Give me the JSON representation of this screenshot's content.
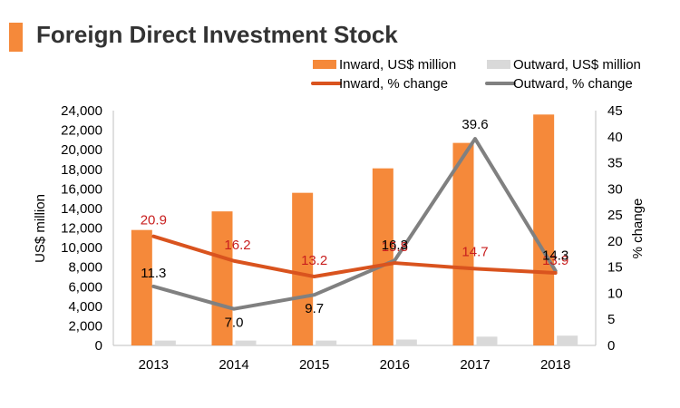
{
  "title": "Foreign Direct Investment Stock",
  "colors": {
    "accent": "#f5893a",
    "inward_bar": "#f5893a",
    "outward_bar": "#d9d9d9",
    "inward_line": "#d9531e",
    "outward_line": "#808080",
    "inward_label": "#c81e1e",
    "outward_label": "#000000"
  },
  "chart_data": {
    "type": "bar",
    "title": "Foreign Direct Investment Stock",
    "categories": [
      "2013",
      "2014",
      "2015",
      "2016",
      "2017",
      "2018"
    ],
    "ylabel": "US$ million",
    "y2label": "% change",
    "ylim": [
      0,
      24000
    ],
    "y_ticks": [
      "0",
      "2,000",
      "4,000",
      "6,000",
      "8,000",
      "10,000",
      "12,000",
      "14,000",
      "16,000",
      "18,000",
      "20,000",
      "22,000",
      "24,000"
    ],
    "y2lim": [
      0,
      45
    ],
    "y2_ticks": [
      "0",
      "5",
      "10",
      "15",
      "20",
      "25",
      "30",
      "35",
      "40",
      "45"
    ],
    "grid": false,
    "legend_position": "top-right",
    "series": [
      {
        "name": "Inward, US$ million",
        "type": "bar",
        "axis": "left",
        "values": [
          11800,
          13700,
          15600,
          18100,
          20700,
          23600
        ]
      },
      {
        "name": "Outward, US$ million",
        "type": "bar",
        "axis": "left",
        "values": [
          500,
          500,
          500,
          600,
          900,
          1000
        ]
      },
      {
        "name": "Inward, % change",
        "type": "line",
        "axis": "right",
        "values": [
          20.9,
          16.2,
          13.2,
          15.8,
          14.7,
          13.9
        ],
        "labels": [
          "20.9",
          "16.2",
          "13.2",
          "15.8",
          "14.7",
          "13.9"
        ]
      },
      {
        "name": "Outward, % change",
        "type": "line",
        "axis": "right",
        "values": [
          11.3,
          7.0,
          9.7,
          16.3,
          39.6,
          14.3
        ],
        "labels": [
          "11.3",
          "7.0",
          "9.7",
          "16.3",
          "39.6",
          "14.3"
        ]
      }
    ]
  }
}
